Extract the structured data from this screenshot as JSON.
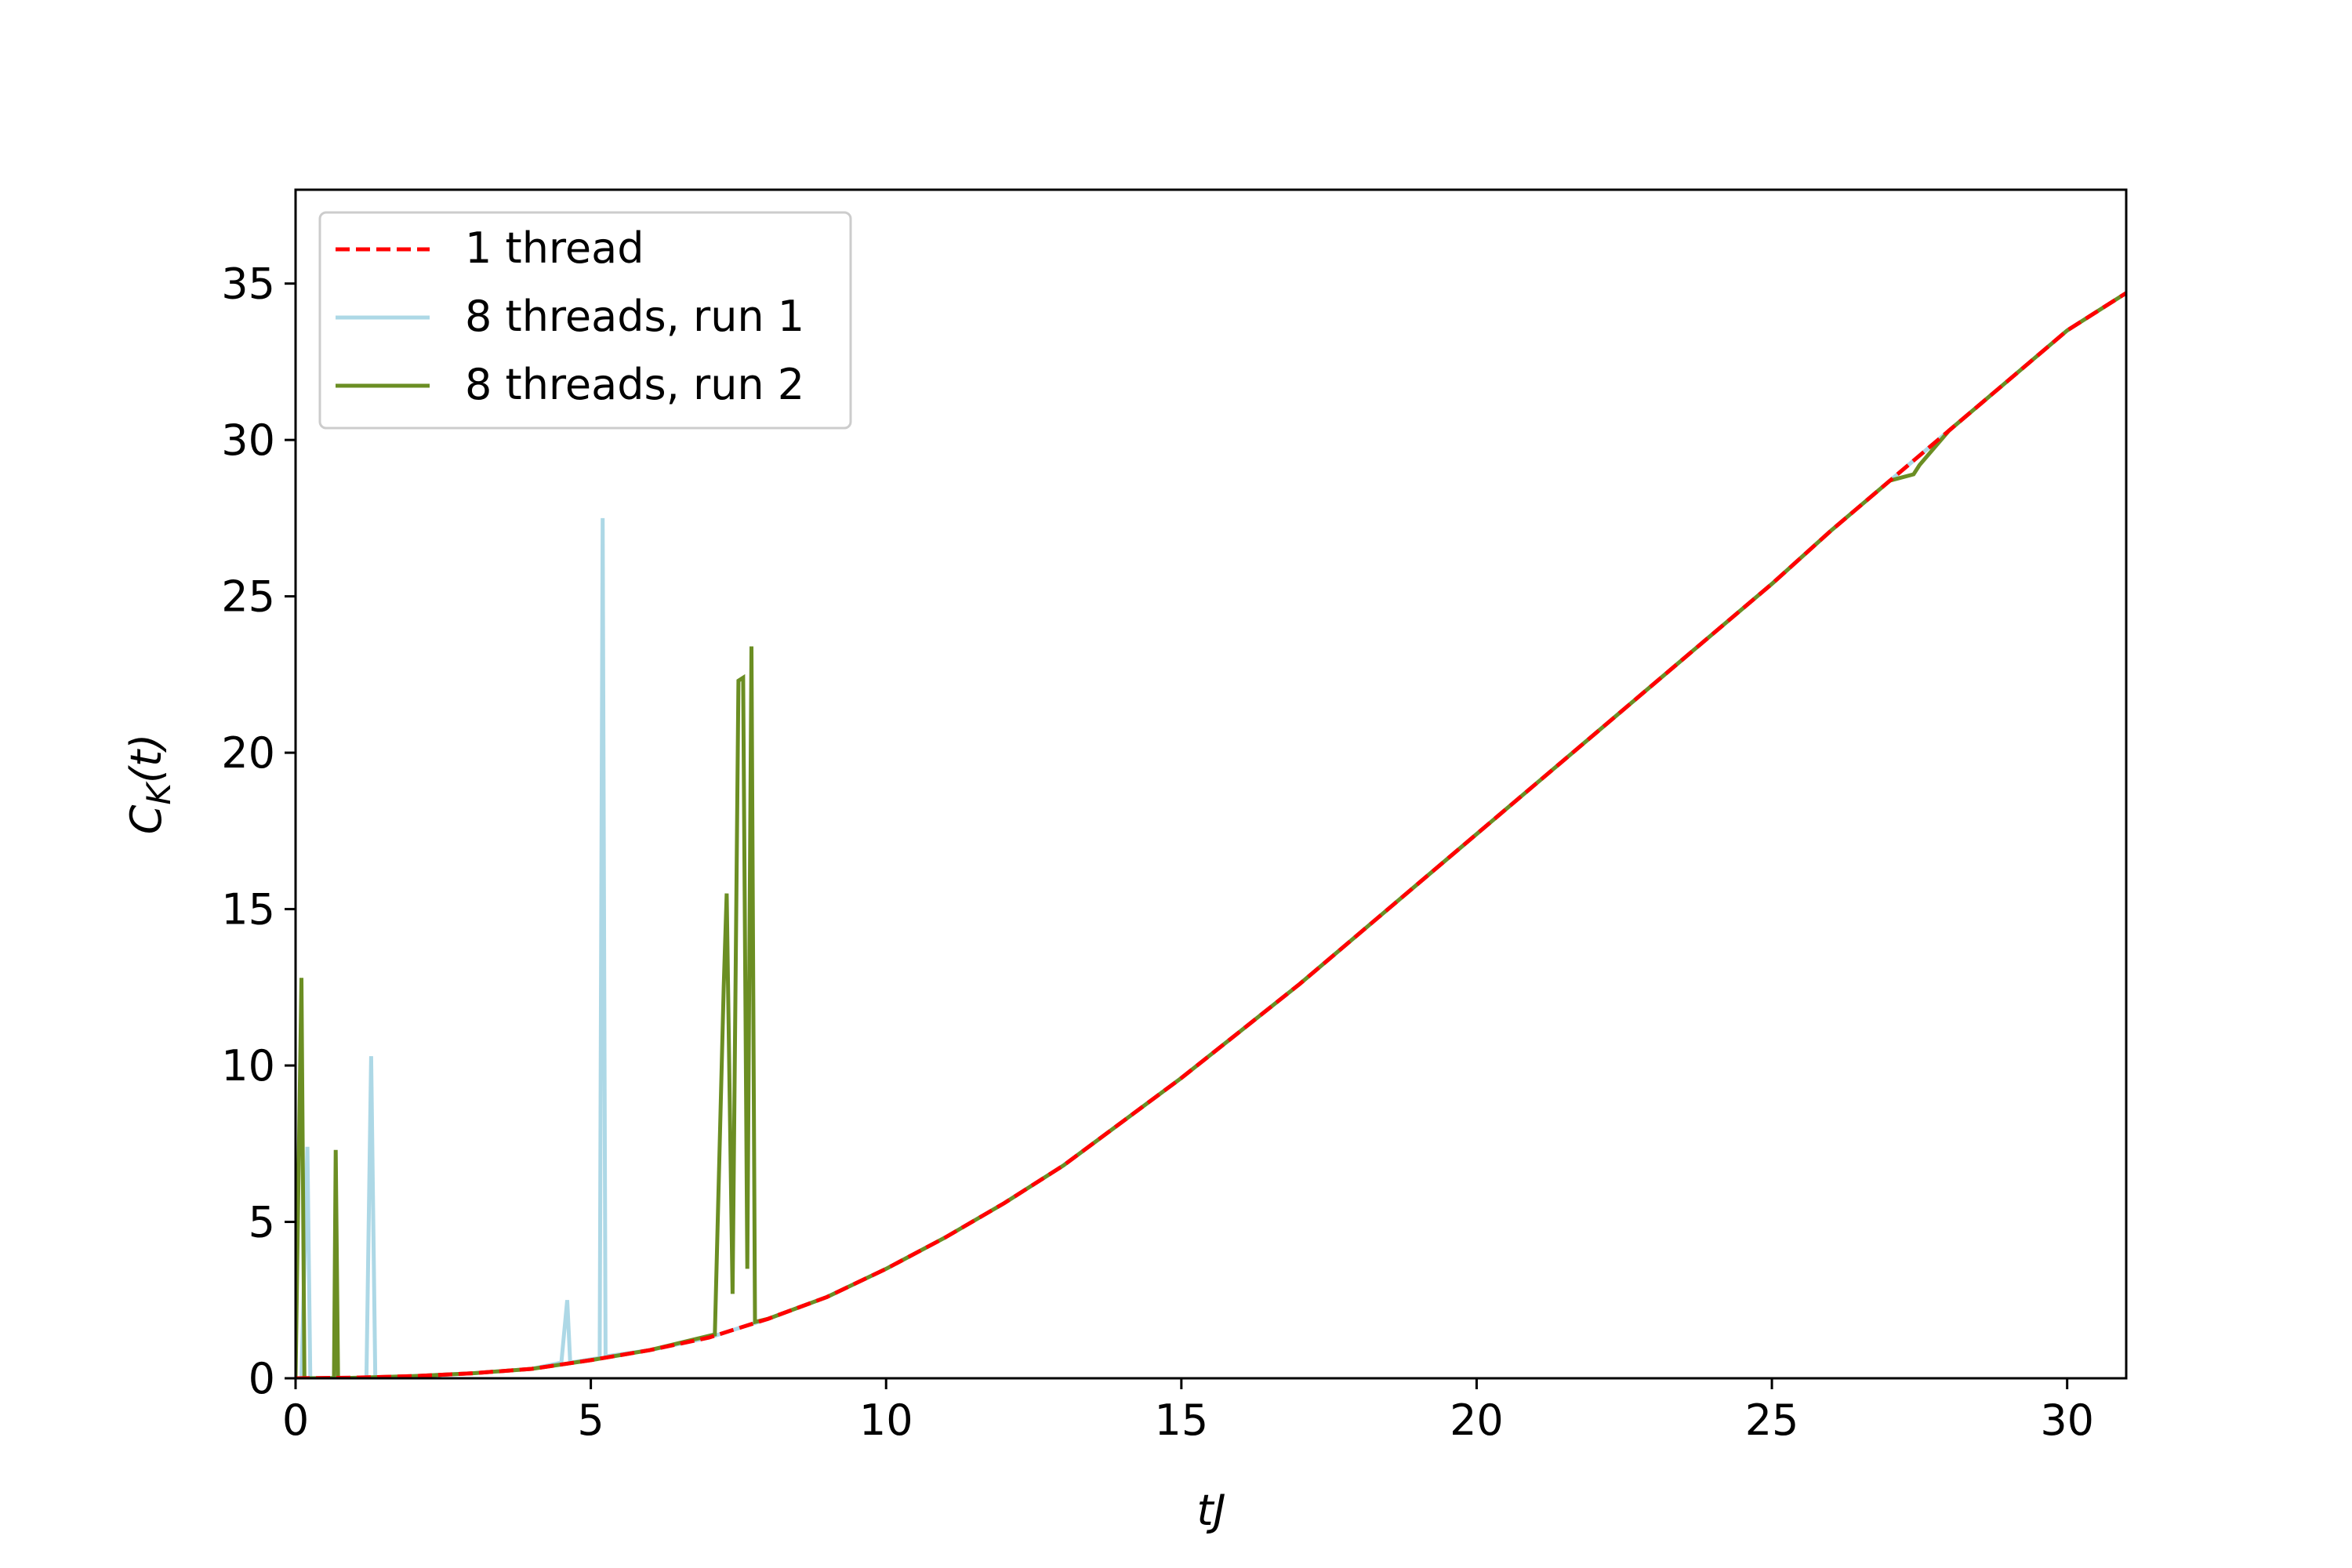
{
  "chart_data": {
    "type": "line",
    "xlabel": "tJ",
    "ylabel": [
      "C",
      "K",
      "(t)"
    ],
    "xlim": [
      0,
      31
    ],
    "ylim": [
      0,
      38
    ],
    "xticks": [
      0,
      5,
      10,
      15,
      20,
      25,
      30
    ],
    "yticks": [
      0,
      5,
      10,
      15,
      20,
      25,
      30,
      35
    ],
    "grid": false,
    "legend_loc": "upper left",
    "series": [
      {
        "name": "1 thread",
        "color": "#ff0000",
        "linestyle": "dashed",
        "x": [
          0,
          1,
          2,
          3,
          4,
          5,
          6,
          7,
          8,
          9,
          10,
          11,
          12,
          13,
          14,
          15,
          16,
          17,
          18,
          19,
          20,
          21,
          22,
          23,
          24,
          25,
          26,
          27,
          28,
          29,
          30,
          31
        ],
        "values": [
          0,
          0.02,
          0.07,
          0.16,
          0.3,
          0.58,
          0.9,
          1.3,
          1.9,
          2.6,
          3.5,
          4.5,
          5.6,
          6.8,
          8.2,
          9.6,
          11.1,
          12.6,
          14.2,
          15.8,
          17.4,
          19.0,
          20.6,
          22.2,
          23.8,
          25.4,
          27.1,
          28.7,
          30.3,
          31.9,
          33.5,
          34.7
        ]
      },
      {
        "name": "8 threads, run 1",
        "color": "#add8e6",
        "linestyle": "solid",
        "x": [
          0,
          0.1,
          0.2,
          0.25,
          1.2,
          1.28,
          1.35,
          2,
          3,
          4,
          4.5,
          4.6,
          4.65,
          5.15,
          5.2,
          5.25,
          6,
          7,
          8,
          9,
          10,
          11,
          12,
          13,
          14,
          15,
          16,
          17,
          18,
          19,
          20,
          21,
          22,
          23,
          24,
          25,
          26,
          27,
          28,
          29,
          30,
          31
        ],
        "values": [
          0,
          0,
          7.4,
          0,
          0.01,
          10.3,
          0.01,
          0.07,
          0.16,
          0.3,
          0.5,
          2.5,
          0.5,
          0.65,
          27.5,
          0.7,
          0.9,
          1.3,
          1.9,
          2.6,
          3.5,
          4.5,
          5.6,
          6.8,
          8.2,
          9.6,
          11.1,
          12.6,
          14.2,
          15.8,
          17.4,
          19.0,
          20.6,
          22.2,
          23.8,
          25.4,
          27.1,
          28.7,
          30.3,
          31.9,
          33.5,
          34.7
        ]
      },
      {
        "name": "8 threads, run 2",
        "color": "#6b8e23",
        "linestyle": "solid",
        "x": [
          0,
          0.1,
          0.15,
          0.65,
          0.68,
          0.72,
          2,
          3,
          4,
          5,
          6,
          7.1,
          7.25,
          7.3,
          7.4,
          7.5,
          7.58,
          7.65,
          7.72,
          7.78,
          8,
          9,
          10,
          11,
          12,
          13,
          14,
          15,
          16,
          17,
          18,
          19,
          20,
          21,
          22,
          23,
          24,
          25,
          26,
          27,
          27.4,
          27.5,
          28,
          29,
          30,
          31
        ],
        "values": [
          0,
          12.8,
          0,
          0.01,
          7.3,
          0,
          0.07,
          0.16,
          0.3,
          0.58,
          0.9,
          1.4,
          12.5,
          15.5,
          2.7,
          22.3,
          22.4,
          3.5,
          23.4,
          1.8,
          1.9,
          2.6,
          3.5,
          4.5,
          5.6,
          6.8,
          8.2,
          9.6,
          11.1,
          12.6,
          14.2,
          15.8,
          17.4,
          19.0,
          20.6,
          22.2,
          23.8,
          25.4,
          27.1,
          28.7,
          28.9,
          29.2,
          30.3,
          31.9,
          33.5,
          34.7
        ]
      }
    ]
  }
}
